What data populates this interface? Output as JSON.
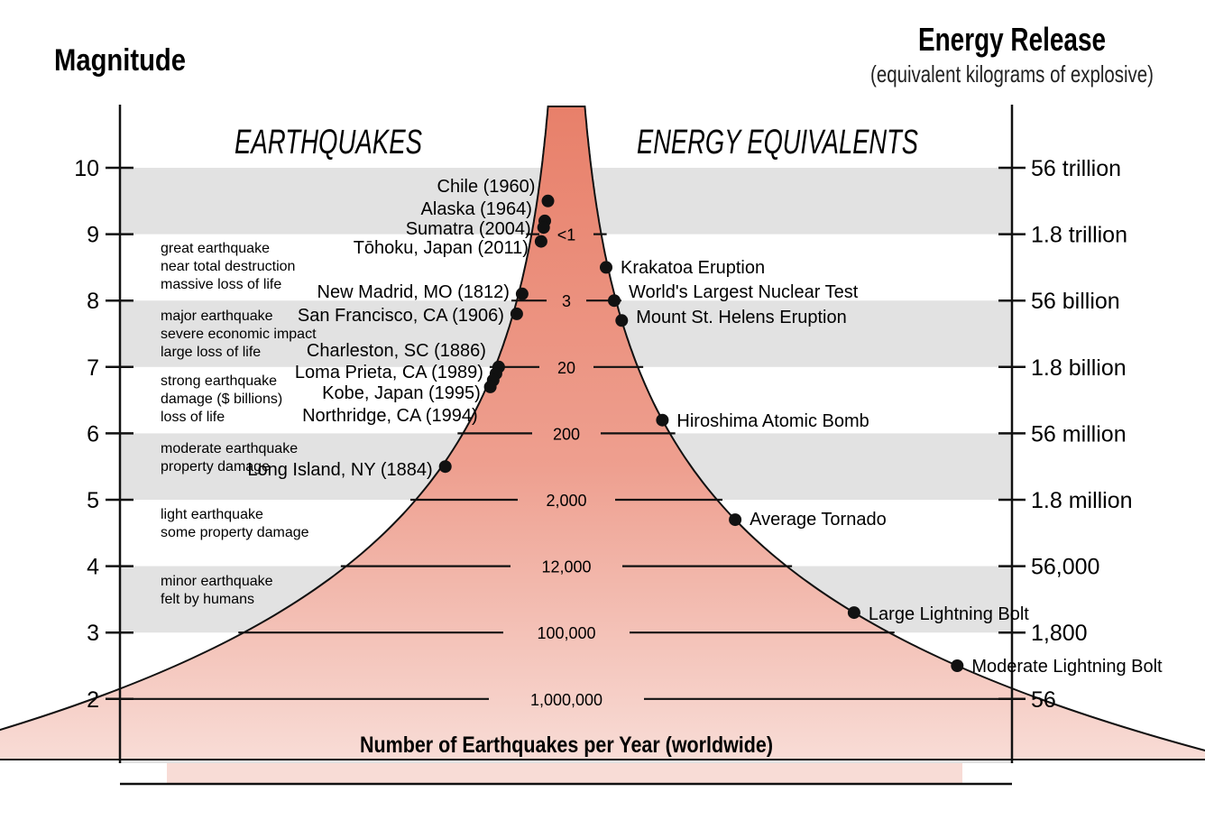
{
  "header": {
    "left_title": "Magnitude",
    "right_title": "Energy Release",
    "right_subtitle": "(equivalent kilograms of explosive)"
  },
  "sections": {
    "left": "EARTHQUAKES",
    "right": "ENERGY EQUIVALENTS"
  },
  "footer_label": "Number of Earthquakes per Year (worldwide)",
  "colors": {
    "band_gray": "#e2e2e2",
    "funnel_top": "#e8806a",
    "funnel_bottom": "#f8dcd6",
    "dot": "#111111",
    "axis": "#111111"
  },
  "magnitudes": [
    "10",
    "9",
    "8",
    "7",
    "6",
    "5",
    "4",
    "3",
    "2"
  ],
  "energy_labels": [
    "56 trillion",
    "1.8 trillion",
    "56 billion",
    "1.8 billion",
    "56 million",
    "1.8 million",
    "56,000",
    "1,800",
    "56"
  ],
  "frequencies": [
    {
      "magnitude": 9,
      "label": "<1"
    },
    {
      "magnitude": 8,
      "label": "3"
    },
    {
      "magnitude": 7,
      "label": "20"
    },
    {
      "magnitude": 6,
      "label": "200"
    },
    {
      "magnitude": 5,
      "label": "2,000"
    },
    {
      "magnitude": 4,
      "label": "12,000"
    },
    {
      "magnitude": 3,
      "label": "100,000"
    },
    {
      "magnitude": 2,
      "label": "1,000,000"
    }
  ],
  "categories": [
    {
      "lines": [
        "great earthquake",
        "near total destruction",
        "massive loss of life"
      ]
    },
    {
      "lines": [
        "major earthquake",
        "severe economic impact",
        "large loss of life"
      ]
    },
    {
      "lines": [
        "strong earthquake",
        "damage ($ billions)",
        "loss of life"
      ]
    },
    {
      "lines": [
        "moderate earthquake",
        "property damage"
      ]
    },
    {
      "lines": [
        "light earthquake",
        "some property damage"
      ]
    },
    {
      "lines": [
        "minor earthquake",
        "felt by humans"
      ]
    }
  ],
  "earthquakes": [
    {
      "name": "Chile (1960)",
      "magnitude": 9.5
    },
    {
      "name": "Alaska (1964)",
      "magnitude": 9.2
    },
    {
      "name": "Sumatra (2004)",
      "magnitude": 9.1
    },
    {
      "name": "Tōhoku, Japan (2011)",
      "magnitude": 9.0
    },
    {
      "name": "New Madrid, MO (1812)",
      "magnitude": 8.1
    },
    {
      "name": "San Francisco, CA (1906)",
      "magnitude": 7.8
    },
    {
      "name": "Charleston, SC (1886)",
      "magnitude": 7.0
    },
    {
      "name": "Loma Prieta, CA (1989)",
      "magnitude": 6.9
    },
    {
      "name": "Kobe, Japan (1995)",
      "magnitude": 6.8
    },
    {
      "name": "Northridge, CA (1994)",
      "magnitude": 6.7
    },
    {
      "name": "Long Island, NY (1884)",
      "magnitude": 5.5
    }
  ],
  "energy_equivalents": [
    {
      "name": "Krakatoa Eruption",
      "magnitude": 8.5
    },
    {
      "name": "World's Largest Nuclear Test",
      "magnitude": 8.0
    },
    {
      "name": "Mount St. Helens Eruption",
      "magnitude": 7.7
    },
    {
      "name": "Hiroshima Atomic Bomb",
      "magnitude": 6.2
    },
    {
      "name": "Average Tornado",
      "magnitude": 4.7
    },
    {
      "name": "Large Lightning Bolt",
      "magnitude": 3.3
    },
    {
      "name": "Moderate Lightning Bolt",
      "magnitude": 2.5
    }
  ]
}
